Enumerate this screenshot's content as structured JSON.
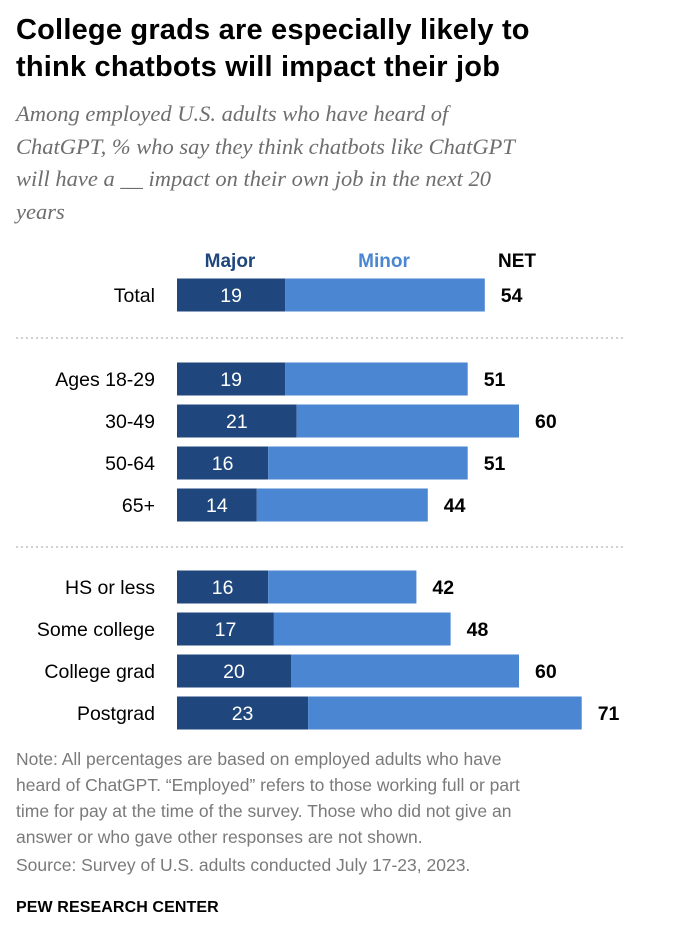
{
  "title": "College grads are especially likely to\nthink chatbots will impact their job",
  "subtitle": "Among employed U.S. adults who have heard of\nChatGPT, % who say they think chatbots like ChatGPT\nwill have a __ impact on their own job in the next 20\nyears",
  "note": "Note: All percentages are based on employed adults who have\nheard of ChatGPT. “Employed” refers to those working full or part\ntime for pay at the time of the survey. Those who did not give an\nanswer or who gave other responses are not shown.",
  "source": "Source: Survey of U.S. adults conducted July 17-23, 2023.",
  "brand": "PEW RESEARCH CENTER",
  "colors": {
    "major": "#1f477d",
    "minor": "#4a86d2",
    "divider": "#b5b5b5"
  },
  "chart_data": {
    "type": "bar",
    "orientation": "horizontal",
    "stacked": true,
    "legend_labels": {
      "major": "Major",
      "minor": "Minor",
      "net": "NET"
    },
    "categories": [
      "Total",
      "Ages 18-29",
      "30-49",
      "50-64",
      "65+",
      "HS or less",
      "Some college",
      "College grad",
      "Postgrad"
    ],
    "groups": [
      [
        0
      ],
      [
        1,
        2,
        3,
        4
      ],
      [
        5,
        6,
        7,
        8
      ]
    ],
    "series": [
      {
        "name": "Major",
        "values": [
          19,
          19,
          21,
          16,
          14,
          16,
          17,
          20,
          23
        ]
      },
      {
        "name": "Minor",
        "values": [
          35,
          32,
          39,
          35,
          30,
          26,
          31,
          40,
          48
        ]
      }
    ],
    "major_labels": [
      "19",
      "19",
      "21",
      "16",
      "14",
      "16",
      "17",
      "20",
      "23"
    ],
    "net_labels": [
      "54",
      "51",
      "60",
      "51",
      "44",
      "42",
      "48",
      "60",
      "71"
    ],
    "net": [
      54,
      51,
      60,
      51,
      44,
      42,
      48,
      60,
      71
    ]
  }
}
